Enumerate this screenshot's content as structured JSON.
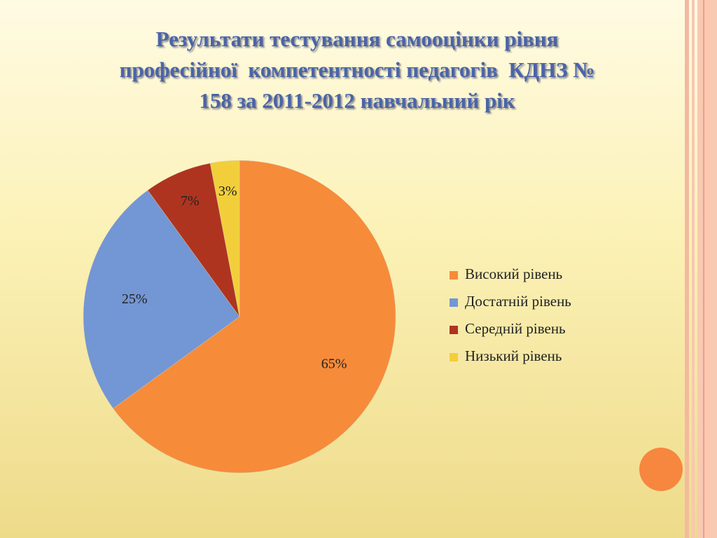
{
  "chart_data": {
    "type": "pie",
    "title": [
      "Результати тестування самооцінки рівня",
      "професійної  компетентності педагогів  КДНЗ №",
      "158 за 2011-2012 навчальний рік"
    ],
    "categories": [
      "Високий рівень",
      "Достатній рівень",
      "Середній рівень",
      "Низький рівень"
    ],
    "values": [
      65,
      25,
      7,
      3
    ],
    "value_labels": [
      "65%",
      "25%",
      "7%",
      "3%"
    ],
    "colors": [
      "#f68b3a",
      "#7396d4",
      "#ae3420",
      "#f2cf3a"
    ],
    "legend": "right"
  }
}
